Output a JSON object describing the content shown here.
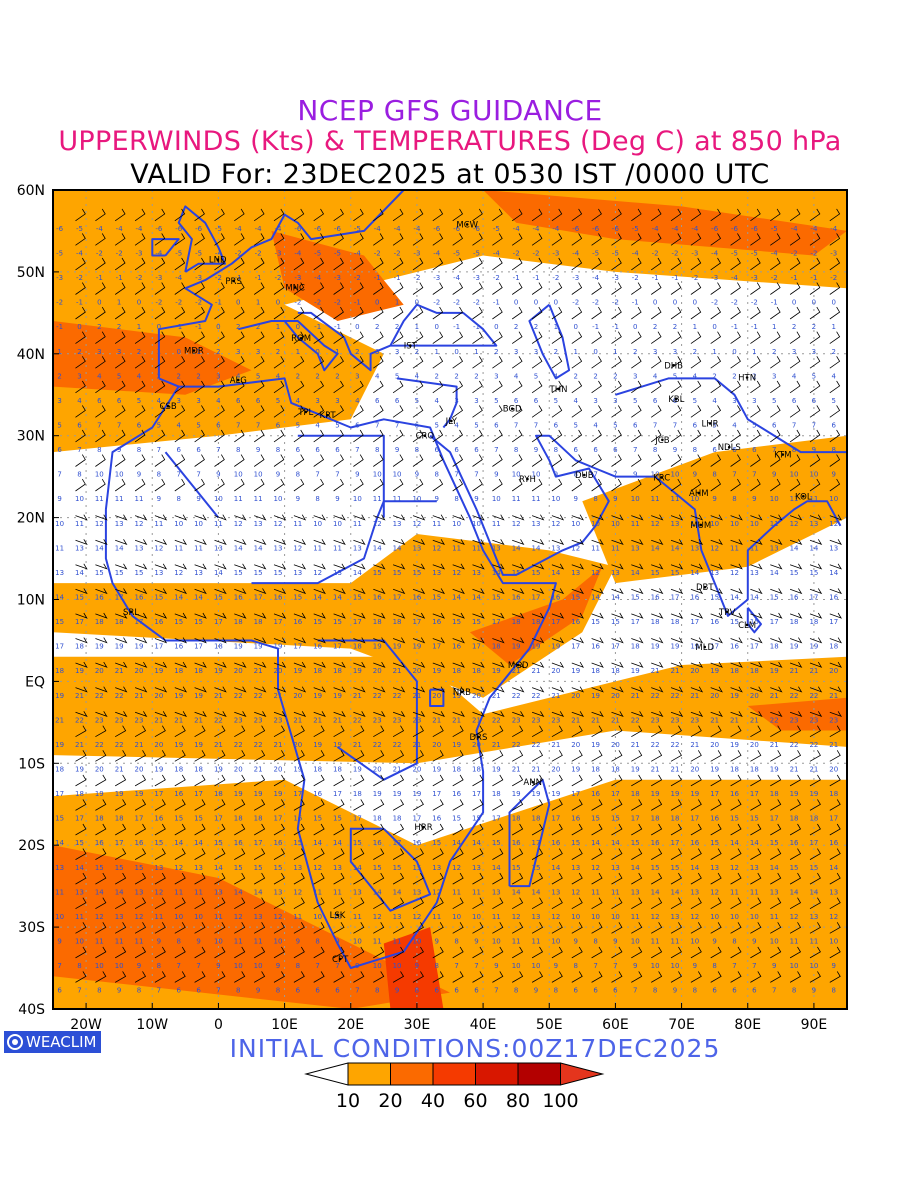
{
  "title": "NCEP GFS GUIDANCE",
  "subtitle": "UPPERWINDS (Kts) & TEMPERATURES (Deg C) at 850 hPa",
  "valid_line": "VALID For: 23DEC2025 at 0530 IST /0000 UTC",
  "initial_conditions": "INITIAL CONDITIONS:00Z17DEC2025",
  "logo_text": "WEACLIM",
  "map": {
    "lon_range": [
      -25,
      95
    ],
    "lat_range": [
      -40,
      60
    ],
    "lat_labels": [
      "60N",
      "50N",
      "40N",
      "30N",
      "20N",
      "10N",
      "EQ",
      "10S",
      "20S",
      "30S",
      "40S"
    ],
    "lat_values": [
      60,
      50,
      40,
      30,
      20,
      10,
      0,
      -10,
      -20,
      -30,
      -40
    ],
    "lon_labels": [
      "20W",
      "10W",
      "0",
      "10E",
      "20E",
      "30E",
      "40E",
      "50E",
      "60E",
      "70E",
      "80E",
      "90E"
    ],
    "lon_values": [
      -20,
      -10,
      0,
      10,
      20,
      30,
      40,
      50,
      60,
      70,
      80,
      90
    ],
    "stations": [
      {
        "code": "MCW",
        "lon": 37.6,
        "lat": 55.8
      },
      {
        "code": "LND",
        "lon": -0.1,
        "lat": 51.5
      },
      {
        "code": "PRS",
        "lon": 2.3,
        "lat": 48.9
      },
      {
        "code": "MNC",
        "lon": 11.6,
        "lat": 48.1
      },
      {
        "code": "ROM",
        "lon": 12.5,
        "lat": 41.9
      },
      {
        "code": "MDR",
        "lon": -3.7,
        "lat": 40.4
      },
      {
        "code": "IST",
        "lon": 29.0,
        "lat": 41.0
      },
      {
        "code": "ALG",
        "lon": 3.0,
        "lat": 36.8
      },
      {
        "code": "CSB",
        "lon": -7.6,
        "lat": 33.6
      },
      {
        "code": "TPL",
        "lon": 13.2,
        "lat": 32.9
      },
      {
        "code": "KRT",
        "lon": 16.5,
        "lat": 32.5
      },
      {
        "code": "CRO",
        "lon": 31.2,
        "lat": 30.0
      },
      {
        "code": "JLY",
        "lon": 35.2,
        "lat": 31.8
      },
      {
        "code": "BGD",
        "lon": 44.4,
        "lat": 33.3
      },
      {
        "code": "THN",
        "lon": 51.4,
        "lat": 35.7
      },
      {
        "code": "DHB",
        "lon": 68.8,
        "lat": 38.6
      },
      {
        "code": "KBL",
        "lon": 69.2,
        "lat": 34.5
      },
      {
        "code": "HTN",
        "lon": 79.9,
        "lat": 37.1
      },
      {
        "code": "LHR",
        "lon": 74.3,
        "lat": 31.5
      },
      {
        "code": "JCB",
        "lon": 67.1,
        "lat": 29.5
      },
      {
        "code": "NDLS",
        "lon": 77.2,
        "lat": 28.6
      },
      {
        "code": "KTM",
        "lon": 85.3,
        "lat": 27.7
      },
      {
        "code": "RYH",
        "lon": 46.7,
        "lat": 24.7
      },
      {
        "code": "DUB",
        "lon": 55.3,
        "lat": 25.2
      },
      {
        "code": "KRC",
        "lon": 67.0,
        "lat": 24.9
      },
      {
        "code": "AHM",
        "lon": 72.6,
        "lat": 23.0
      },
      {
        "code": "KOL",
        "lon": 88.4,
        "lat": 22.6
      },
      {
        "code": "MUM",
        "lon": 72.9,
        "lat": 19.1
      },
      {
        "code": "SRL",
        "lon": -13.2,
        "lat": 8.5
      },
      {
        "code": "DBT",
        "lon": 73.5,
        "lat": 11.5
      },
      {
        "code": "TRV",
        "lon": 76.9,
        "lat": 8.5
      },
      {
        "code": "CLM",
        "lon": 79.9,
        "lat": 6.9
      },
      {
        "code": "MLD",
        "lon": 73.5,
        "lat": 4.2
      },
      {
        "code": "MGD",
        "lon": 45.3,
        "lat": 2.0
      },
      {
        "code": "NRB",
        "lon": 36.8,
        "lat": -1.3
      },
      {
        "code": "DRS",
        "lon": 39.3,
        "lat": -6.8
      },
      {
        "code": "ANN",
        "lon": 47.5,
        "lat": -12.3
      },
      {
        "code": "HRR",
        "lon": 31.0,
        "lat": -17.8
      },
      {
        "code": "LSK",
        "lon": 18.0,
        "lat": -28.5
      },
      {
        "code": "CPT",
        "lon": 18.4,
        "lat": -33.9
      }
    ]
  },
  "legend": {
    "labels": [
      "10",
      "20",
      "40",
      "60",
      "80",
      "100"
    ],
    "colors": [
      "#ffffff",
      "#fea500",
      "#fb6a00",
      "#f53a00",
      "#d81700",
      "#b30000",
      "#e4351d"
    ]
  },
  "colors": {
    "border": "#2b43e0",
    "temperature_numbers": "#3050d0",
    "barbs": "#000000",
    "shade_10_20": "#fea500",
    "shade_20_40": "#fb6a00",
    "shade_40_60": "#f53a00"
  }
}
